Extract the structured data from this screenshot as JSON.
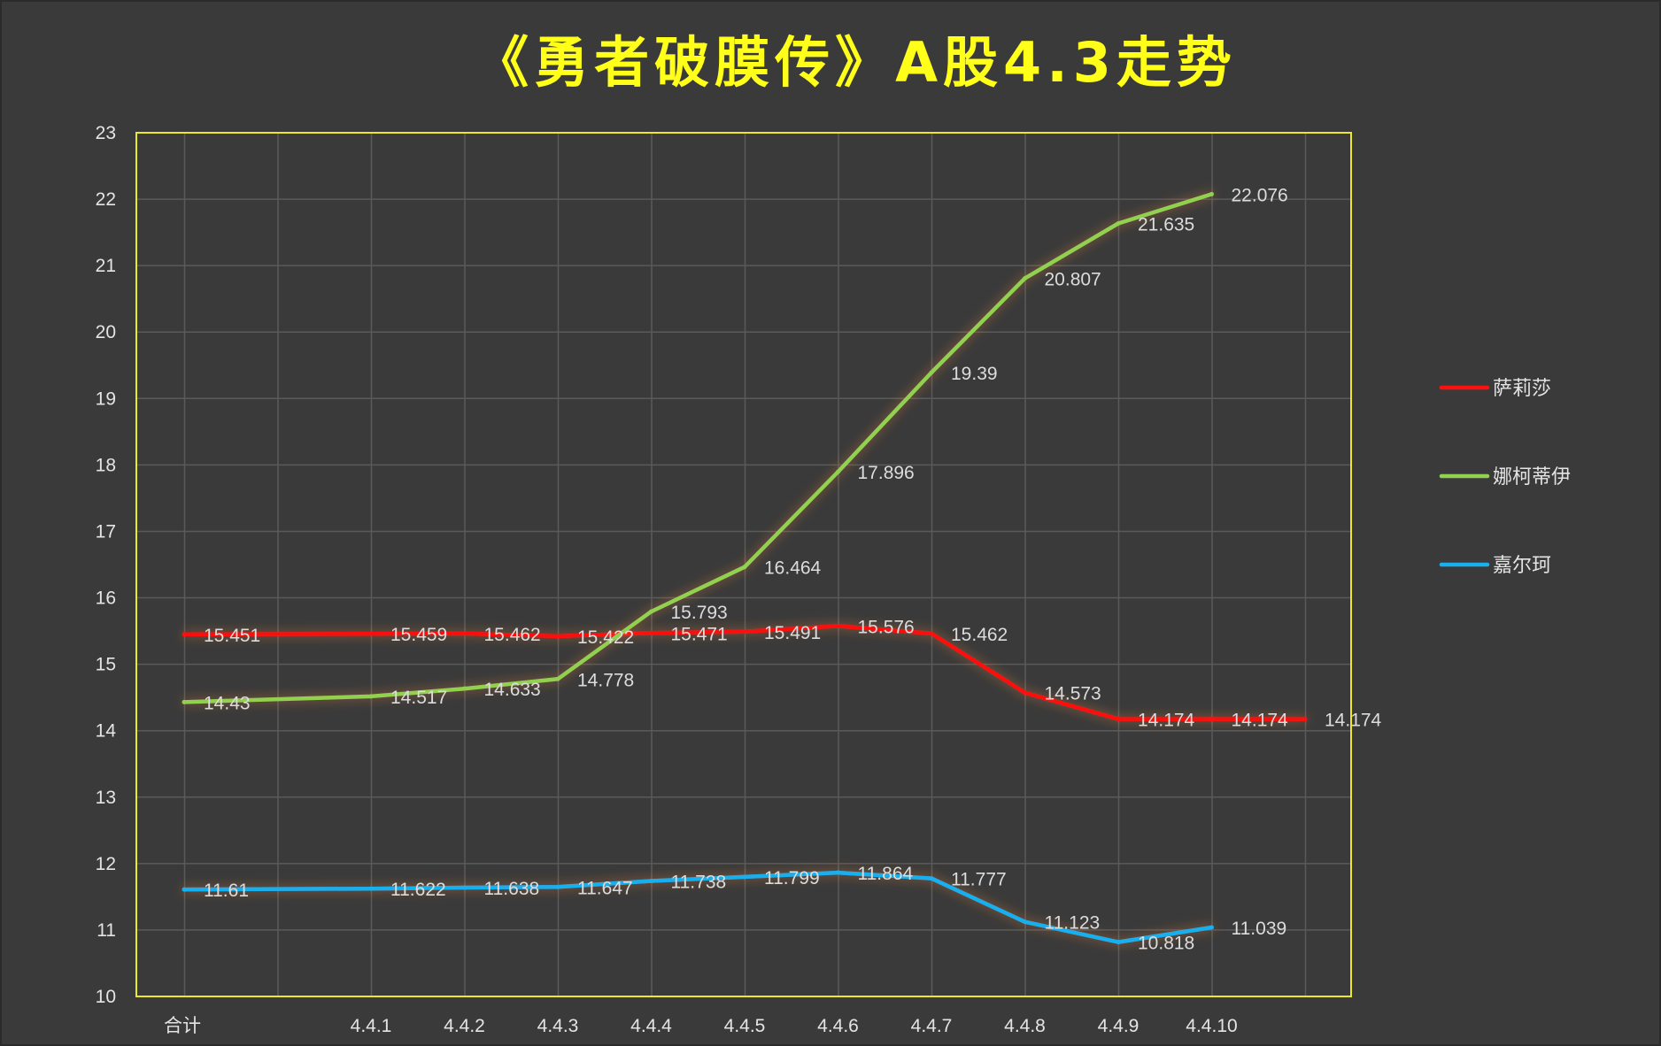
{
  "chart_data": {
    "type": "line",
    "title": "《勇者破膜传》A股4.3走势",
    "xlabel": "",
    "ylabel": "",
    "categories": [
      "合计",
      "",
      "4.4.1",
      "4.4.2",
      "4.4.3",
      "4.4.4",
      "4.4.5",
      "4.4.6",
      "4.4.7",
      "4.4.8",
      "4.4.9",
      "4.4.10",
      ""
    ],
    "ylim": [
      10,
      23
    ],
    "yticks": [
      "10",
      "11",
      "12",
      "13",
      "14",
      "15",
      "16",
      "17",
      "18",
      "19",
      "20",
      "21",
      "22",
      "23"
    ],
    "grid": true,
    "legend_position": "right",
    "series": [
      {
        "name": "萨莉莎",
        "color": "#ff1010",
        "values": [
          15.451,
          null,
          15.459,
          15.462,
          15.422,
          15.471,
          15.491,
          15.576,
          15.462,
          14.573,
          14.174,
          14.174,
          14.174
        ],
        "labels": [
          "15.451",
          "",
          "15.459",
          "15.462",
          "15.422",
          "15.471",
          "15.491",
          "15.576",
          "15.462",
          "14.573",
          "14.174",
          "14.174",
          "14.174"
        ]
      },
      {
        "name": "娜柯蒂伊",
        "color": "#92d050",
        "values": [
          14.43,
          null,
          14.517,
          14.633,
          14.778,
          15.793,
          16.464,
          17.896,
          19.39,
          20.807,
          21.635,
          22.076,
          null
        ],
        "labels": [
          "14.43",
          "",
          "14.517",
          "14.633",
          "14.778",
          "15.793",
          "16.464",
          "17.896",
          "19.39",
          "20.807",
          "21.635",
          "22.076",
          ""
        ]
      },
      {
        "name": "嘉尔珂",
        "color": "#18b0ee",
        "values": [
          11.61,
          null,
          11.622,
          11.638,
          11.647,
          11.738,
          11.799,
          11.864,
          11.777,
          11.123,
          10.818,
          11.039,
          null
        ],
        "labels": [
          "11.61",
          "",
          "11.622",
          "11.638",
          "11.647",
          "11.738",
          "11.799",
          "11.864",
          "11.777",
          "11.123",
          "10.818",
          "11.039",
          ""
        ]
      }
    ]
  }
}
